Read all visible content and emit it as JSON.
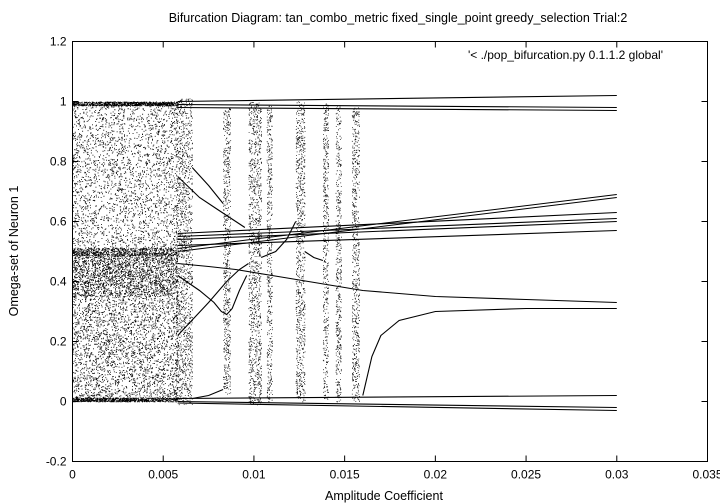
{
  "chart_data": {
    "type": "scatter",
    "title": "Bifurcation Diagram: tan_combo_metric fixed_single_point greedy_selection Trial:2",
    "xlabel": "Amplitude Coefficient",
    "ylabel": "Omega-set of Neuron 1",
    "legend_label": "'< ./pop_bifurcation.py 0.1.1.2 global'",
    "legend_position": "top-right",
    "grid": false,
    "xlim": [
      0,
      0.035
    ],
    "ylim": [
      -0.2,
      1.2
    ],
    "x_ticks": [
      0,
      0.005,
      0.01,
      0.015,
      0.02,
      0.025,
      0.03,
      0.035
    ],
    "x_tick_labels": [
      "0",
      "0.005",
      "0.01",
      "0.015",
      "0.02",
      "0.025",
      "0.03",
      "0.035"
    ],
    "y_ticks": [
      -0.2,
      0,
      0.2,
      0.4,
      0.6,
      0.8,
      1,
      1.2
    ],
    "y_tick_labels": [
      "-0.2",
      "0",
      "0.2",
      "0.4",
      "0.6",
      "0.8",
      "1",
      "1.2"
    ],
    "marker_color": "#000000",
    "dense_band": {
      "x": [
        0,
        0.0058
      ],
      "y": [
        0,
        1
      ]
    },
    "chaotic_windows": [
      {
        "x": [
          0.0057,
          0.0066
        ],
        "y": [
          -0.01,
          1.01
        ]
      },
      {
        "x": [
          0.0083,
          0.0087
        ],
        "y": [
          0.02,
          0.98
        ]
      },
      {
        "x": [
          0.0097,
          0.0104
        ],
        "y": [
          -0.01,
          1.0
        ]
      },
      {
        "x": [
          0.0107,
          0.011
        ],
        "y": [
          0.0,
          0.99
        ]
      },
      {
        "x": [
          0.0123,
          0.0128
        ],
        "y": [
          0.0,
          1.0
        ]
      },
      {
        "x": [
          0.0138,
          0.0141
        ],
        "y": [
          0.0,
          1.0
        ]
      },
      {
        "x": [
          0.0145,
          0.0148
        ],
        "y": [
          0.0,
          0.99
        ]
      },
      {
        "x": [
          0.0154,
          0.0158
        ],
        "y": [
          0.0,
          0.98
        ]
      }
    ],
    "branches": [
      {
        "x": [
          0.0058,
          0.03
        ],
        "y": [
          1.0,
          1.02
        ]
      },
      {
        "x": [
          0.0058,
          0.03
        ],
        "y": [
          0.99,
          0.98
        ]
      },
      {
        "x": [
          0.0058,
          0.03
        ],
        "y": [
          0.98,
          0.97
        ]
      },
      {
        "x": [
          0.0058,
          0.03
        ],
        "y": [
          0.0,
          -0.02
        ]
      },
      {
        "x": [
          0.0058,
          0.03
        ],
        "y": [
          -0.005,
          -0.03
        ]
      },
      {
        "x": [
          0.0058,
          0.03
        ],
        "y": [
          0.01,
          0.02
        ]
      },
      {
        "x": [
          0.0058,
          0.0075,
          0.009,
          0.011,
          0.013,
          0.016,
          0.02,
          0.025,
          0.03
        ],
        "y": [
          0.46,
          0.45,
          0.44,
          0.42,
          0.4,
          0.37,
          0.35,
          0.34,
          0.33
        ]
      },
      {
        "x": [
          0.016,
          0.0165,
          0.017,
          0.018,
          0.02,
          0.025,
          0.03
        ],
        "y": [
          0.02,
          0.15,
          0.22,
          0.27,
          0.3,
          0.31,
          0.31
        ]
      },
      {
        "x": [
          0.0058,
          0.03
        ],
        "y": [
          0.52,
          0.57
        ]
      },
      {
        "x": [
          0.0058,
          0.03
        ],
        "y": [
          0.54,
          0.6
        ]
      },
      {
        "x": [
          0.0058,
          0.03
        ],
        "y": [
          0.55,
          0.61
        ]
      },
      {
        "x": [
          0.0058,
          0.03
        ],
        "y": [
          0.56,
          0.63
        ]
      },
      {
        "x": [
          0.0058,
          0.03
        ],
        "y": [
          0.5,
          0.68
        ]
      },
      {
        "x": [
          0.0058,
          0.03
        ],
        "y": [
          0.51,
          0.69
        ]
      },
      {
        "x": [
          0.0058,
          0.007,
          0.008,
          0.0085,
          0.009,
          0.0095
        ],
        "y": [
          0.75,
          0.68,
          0.64,
          0.62,
          0.6,
          0.58
        ]
      },
      {
        "x": [
          0.0058,
          0.007,
          0.0078,
          0.0082,
          0.0085,
          0.0088,
          0.0092,
          0.0096
        ],
        "y": [
          0.42,
          0.37,
          0.33,
          0.3,
          0.29,
          0.31,
          0.37,
          0.42
        ]
      },
      {
        "x": [
          0.0058,
          0.0075,
          0.0085,
          0.0092,
          0.0097
        ],
        "y": [
          0.22,
          0.33,
          0.4,
          0.44,
          0.46
        ]
      },
      {
        "x": [
          0.0104,
          0.0112,
          0.0118,
          0.0123
        ],
        "y": [
          0.48,
          0.5,
          0.54,
          0.6
        ]
      },
      {
        "x": [
          0.0128,
          0.0133,
          0.0138
        ],
        "y": [
          0.5,
          0.48,
          0.47
        ]
      },
      {
        "x": [
          0.0066,
          0.0075,
          0.0083
        ],
        "y": [
          0.78,
          0.72,
          0.66
        ]
      },
      {
        "x": [
          0.0066,
          0.0075,
          0.0083
        ],
        "y": [
          0.01,
          0.02,
          0.04
        ]
      }
    ]
  }
}
